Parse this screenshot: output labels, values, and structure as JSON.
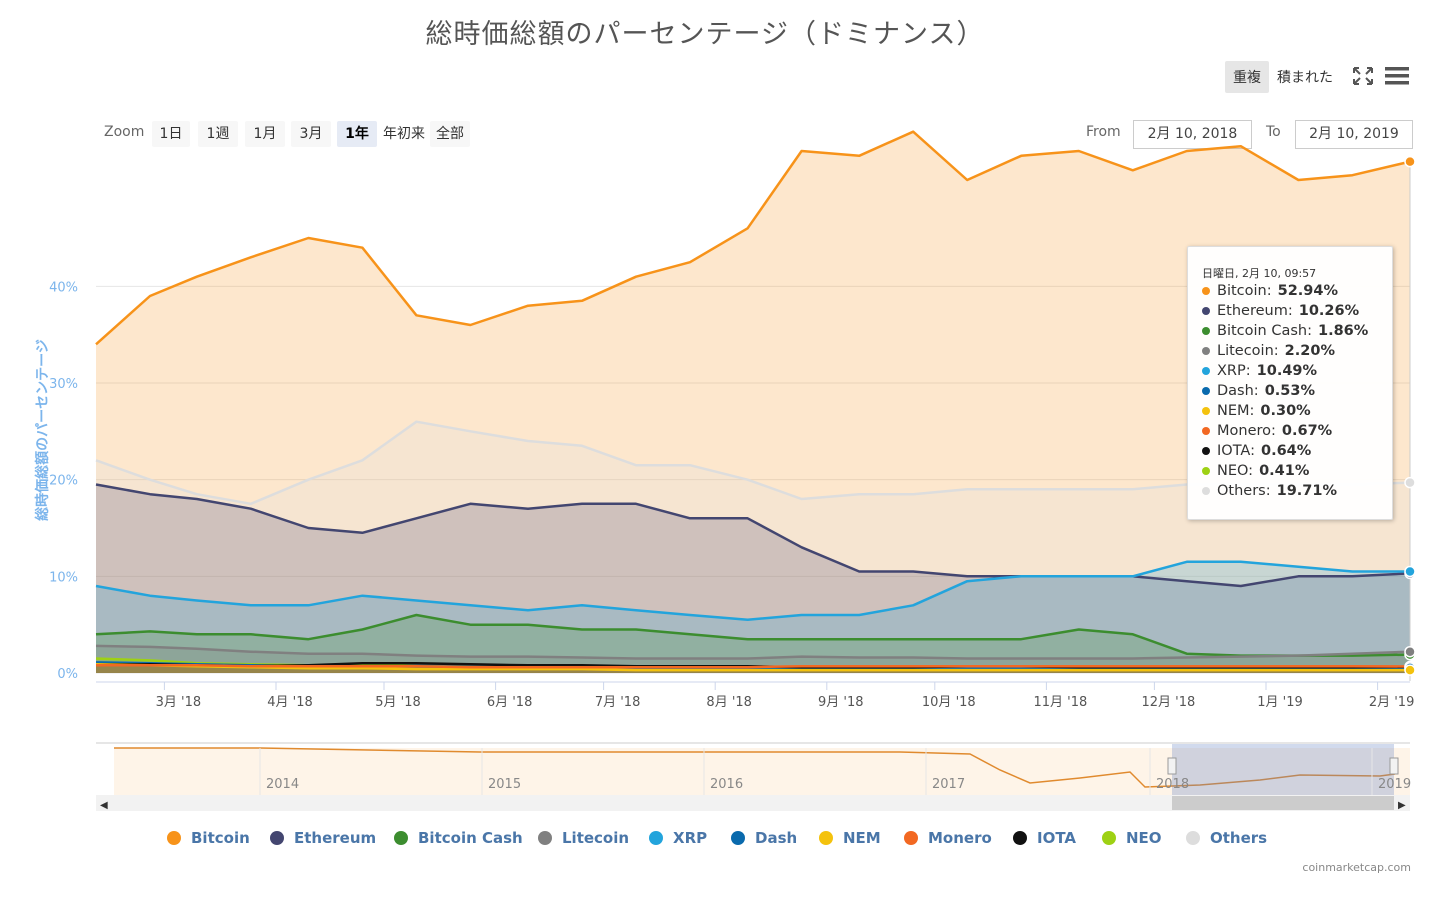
{
  "title": "総時価総額のパーセンテージ（ドミナンス）",
  "toolbar": {
    "overlap_label": "重複",
    "stacked_label": "積まれた",
    "fullscreen_icon": "fullscreen-icon",
    "menu_icon": "menu-icon"
  },
  "zoom": {
    "label": "Zoom",
    "buttons": [
      "1日",
      "1週",
      "1月",
      "3月",
      "1年",
      "年初来",
      "全部"
    ],
    "selected": "1年"
  },
  "range": {
    "from_label": "From",
    "from_value": "2月 10, 2018",
    "to_label": "To",
    "to_value": "2月 10, 2019"
  },
  "y_axis_label": "総時価総額のパーセンテージ",
  "navigator": {
    "years": [
      "2014",
      "2015",
      "2016",
      "2017",
      "2018",
      "2019"
    ]
  },
  "tooltip": {
    "header": "日曜日, 2月 10, 09:57",
    "rows": [
      {
        "name": "Bitcoin",
        "value": "52.94%",
        "color": "#f7931a"
      },
      {
        "name": "Ethereum",
        "value": "10.26%",
        "color": "#434670"
      },
      {
        "name": "Bitcoin Cash",
        "value": "1.86%",
        "color": "#3c8d2f"
      },
      {
        "name": "Litecoin",
        "value": "2.20%",
        "color": "#808080"
      },
      {
        "name": "XRP",
        "value": "10.49%",
        "color": "#23a4dc"
      },
      {
        "name": "Dash",
        "value": "0.53%",
        "color": "#0a6aad"
      },
      {
        "name": "NEM",
        "value": "0.30%",
        "color": "#f4c20d"
      },
      {
        "name": "Monero",
        "value": "0.67%",
        "color": "#f26822"
      },
      {
        "name": "IOTA",
        "value": "0.64%",
        "color": "#111111"
      },
      {
        "name": "NEO",
        "value": "0.41%",
        "color": "#9ed114"
      },
      {
        "name": "Others",
        "value": "19.71%",
        "color": "#dddddd"
      }
    ]
  },
  "credit": "coinmarketcap.com",
  "chart_data": {
    "type": "area",
    "y_ticks": [
      "0%",
      "10%",
      "20%",
      "30%",
      "40%"
    ],
    "ylim": [
      0,
      60
    ],
    "x_ticks": [
      "3月 '18",
      "4月 '18",
      "5月 '18",
      "6月 '18",
      "7月 '18",
      "8月 '18",
      "9月 '18",
      "10月 '18",
      "11月 '18",
      "12月 '18",
      "1月 '19",
      "2月 '19"
    ],
    "x_range": [
      "2018-02-10",
      "2019-02-10"
    ],
    "x": [
      "2018-02-10",
      "2018-02-25",
      "2018-03-10",
      "2018-03-25",
      "2018-04-10",
      "2018-04-25",
      "2018-05-10",
      "2018-05-25",
      "2018-06-10",
      "2018-06-25",
      "2018-07-10",
      "2018-07-25",
      "2018-08-10",
      "2018-08-25",
      "2018-09-10",
      "2018-09-25",
      "2018-10-10",
      "2018-10-25",
      "2018-11-10",
      "2018-11-25",
      "2018-12-10",
      "2018-12-25",
      "2019-01-10",
      "2019-01-25",
      "2019-02-10"
    ],
    "series": [
      {
        "name": "Bitcoin",
        "color": "#f7931a",
        "values": [
          34,
          39,
          41,
          43,
          45,
          44,
          37,
          36,
          38,
          38.5,
          41,
          42.5,
          46,
          54,
          53.5,
          56,
          51,
          53.5,
          54,
          52,
          54,
          54.5,
          51,
          51.5,
          52.9
        ]
      },
      {
        "name": "Others",
        "color": "#dddddd",
        "values": [
          22,
          20,
          18.5,
          17.5,
          20,
          22,
          26,
          25,
          24,
          23.5,
          21.5,
          21.5,
          20,
          18,
          18.5,
          18.5,
          19,
          19,
          19,
          19,
          19.5,
          19.5,
          19.5,
          19.5,
          19.7
        ]
      },
      {
        "name": "Ethereum",
        "color": "#434670",
        "values": [
          19.5,
          18.5,
          18,
          17,
          15,
          14.5,
          16,
          17.5,
          17,
          17.5,
          17.5,
          16,
          16,
          13,
          10.5,
          10.5,
          10,
          10,
          10,
          10,
          9.5,
          9,
          10,
          10,
          10.3
        ]
      },
      {
        "name": "XRP",
        "color": "#23a4dc",
        "values": [
          9,
          8,
          7.5,
          7,
          7,
          8,
          7.5,
          7,
          6.5,
          7,
          6.5,
          6,
          5.5,
          6,
          6,
          7,
          9.5,
          10,
          10,
          10,
          11.5,
          11.5,
          11,
          10.5,
          10.5
        ]
      },
      {
        "name": "Bitcoin Cash",
        "color": "#3c8d2f",
        "values": [
          4,
          4.3,
          4,
          4,
          3.5,
          4.5,
          6,
          5,
          5,
          4.5,
          4.5,
          4,
          3.5,
          3.5,
          3.5,
          3.5,
          3.5,
          3.5,
          4.5,
          4,
          2,
          1.8,
          1.8,
          1.8,
          1.9
        ]
      },
      {
        "name": "Litecoin",
        "color": "#808080",
        "values": [
          2.8,
          2.7,
          2.5,
          2.2,
          2,
          2,
          1.8,
          1.7,
          1.7,
          1.6,
          1.5,
          1.5,
          1.5,
          1.7,
          1.6,
          1.6,
          1.5,
          1.5,
          1.5,
          1.5,
          1.6,
          1.7,
          1.8,
          2,
          2.2
        ]
      },
      {
        "name": "NEO",
        "color": "#9ed114",
        "values": [
          1.5,
          1.3,
          1,
          0.9,
          0.8,
          0.9,
          0.7,
          0.6,
          0.6,
          0.5,
          0.5,
          0.4,
          0.4,
          0.4,
          0.4,
          0.4,
          0.4,
          0.4,
          0.4,
          0.4,
          0.4,
          0.4,
          0.4,
          0.4,
          0.41
        ]
      },
      {
        "name": "IOTA",
        "color": "#111111",
        "values": [
          0.9,
          0.9,
          0.8,
          0.7,
          0.8,
          1,
          1,
          0.9,
          0.8,
          0.8,
          0.7,
          0.7,
          0.7,
          0.6,
          0.6,
          0.6,
          0.7,
          0.7,
          0.6,
          0.6,
          0.6,
          0.6,
          0.6,
          0.6,
          0.64
        ]
      },
      {
        "name": "Monero",
        "color": "#f26822",
        "values": [
          0.8,
          0.8,
          0.8,
          0.7,
          0.7,
          0.7,
          0.7,
          0.6,
          0.6,
          0.6,
          0.6,
          0.6,
          0.6,
          0.7,
          0.7,
          0.7,
          0.7,
          0.7,
          0.7,
          0.7,
          0.7,
          0.7,
          0.7,
          0.7,
          0.67
        ]
      },
      {
        "name": "Dash",
        "color": "#0a6aad",
        "values": [
          1.1,
          1,
          0.9,
          0.8,
          0.7,
          0.7,
          0.7,
          0.6,
          0.6,
          0.6,
          0.5,
          0.5,
          0.5,
          0.5,
          0.5,
          0.5,
          0.5,
          0.5,
          0.5,
          0.5,
          0.5,
          0.5,
          0.5,
          0.5,
          0.53
        ]
      },
      {
        "name": "NEM",
        "color": "#f4c20d",
        "values": [
          0.9,
          0.8,
          0.7,
          0.6,
          0.5,
          0.5,
          0.4,
          0.4,
          0.4,
          0.4,
          0.3,
          0.3,
          0.3,
          0.3,
          0.3,
          0.3,
          0.3,
          0.3,
          0.3,
          0.3,
          0.3,
          0.3,
          0.3,
          0.3,
          0.3
        ]
      }
    ]
  },
  "legend": [
    "Bitcoin",
    "Ethereum",
    "Bitcoin Cash",
    "Litecoin",
    "XRP",
    "Dash",
    "NEM",
    "Monero",
    "IOTA",
    "NEO",
    "Others"
  ],
  "legend_colors": [
    "#f7931a",
    "#434670",
    "#3c8d2f",
    "#808080",
    "#23a4dc",
    "#0a6aad",
    "#f4c20d",
    "#f26822",
    "#111111",
    "#9ed114",
    "#dddddd"
  ]
}
